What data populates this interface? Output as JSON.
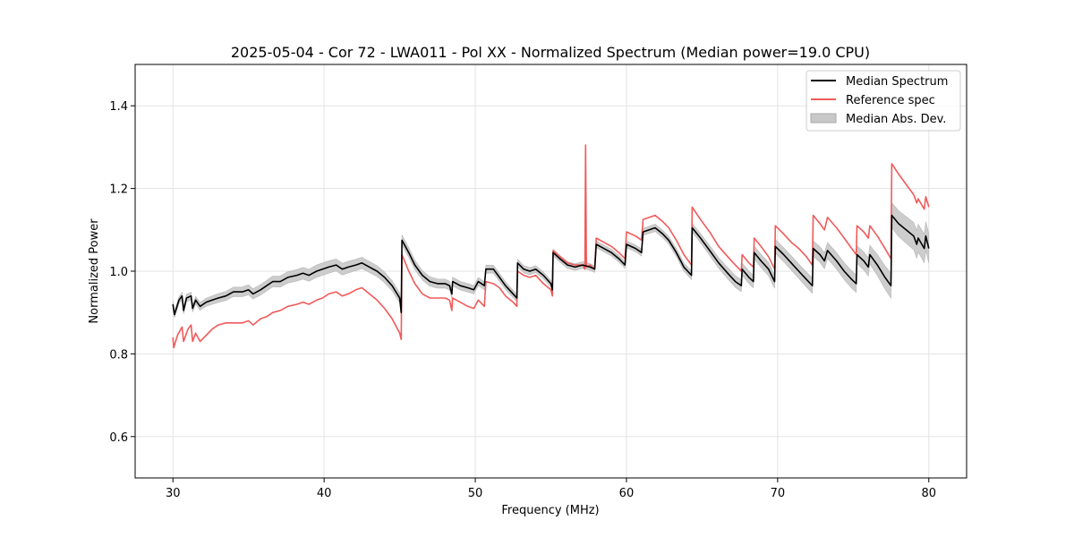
{
  "chart_data": {
    "type": "line",
    "title": "2025-05-04 - Cor 72 - LWA011 - Pol XX - Normalized Spectrum (Median power=19.0 CPU)",
    "xlabel": "Frequency (MHz)",
    "ylabel": "Normalized Power",
    "xlim": [
      27.5,
      82.5
    ],
    "ylim": [
      0.5,
      1.5
    ],
    "xticks": [
      30,
      40,
      50,
      60,
      70,
      80
    ],
    "yticks": [
      0.6,
      0.8,
      1.0,
      1.2,
      1.4
    ],
    "xtick_labels": [
      "30",
      "40",
      "50",
      "60",
      "70",
      "80"
    ],
    "ytick_labels": [
      "0.6",
      "0.8",
      "1.0",
      "1.2",
      "1.4"
    ],
    "grid": true,
    "legend_position": "top-right",
    "legend": [
      {
        "label": "Median Spectrum",
        "kind": "line",
        "color": "#000000"
      },
      {
        "label": "Reference spec",
        "kind": "line",
        "color": "#f05a5a"
      },
      {
        "label": "Median Abs. Dev.",
        "kind": "patch",
        "color": "#c8c8c8"
      }
    ],
    "series": [
      {
        "name": "Median Spectrum",
        "color": "#000000",
        "points": [
          [
            30.0,
            0.92
          ],
          [
            30.1,
            0.895
          ],
          [
            30.4,
            0.93
          ],
          [
            30.6,
            0.94
          ],
          [
            30.7,
            0.905
          ],
          [
            30.9,
            0.935
          ],
          [
            31.2,
            0.94
          ],
          [
            31.3,
            0.91
          ],
          [
            31.5,
            0.93
          ],
          [
            31.8,
            0.915
          ],
          [
            32.2,
            0.925
          ],
          [
            32.6,
            0.93
          ],
          [
            33.0,
            0.935
          ],
          [
            33.5,
            0.94
          ],
          [
            34.0,
            0.95
          ],
          [
            34.6,
            0.95
          ],
          [
            35.0,
            0.955
          ],
          [
            35.3,
            0.945
          ],
          [
            35.8,
            0.955
          ],
          [
            36.2,
            0.965
          ],
          [
            36.6,
            0.975
          ],
          [
            37.1,
            0.975
          ],
          [
            37.6,
            0.985
          ],
          [
            38.2,
            0.99
          ],
          [
            38.6,
            0.995
          ],
          [
            39.0,
            0.99
          ],
          [
            39.5,
            1.0
          ],
          [
            39.9,
            1.005
          ],
          [
            40.3,
            1.01
          ],
          [
            40.8,
            1.015
          ],
          [
            41.2,
            1.005
          ],
          [
            41.6,
            1.01
          ],
          [
            42.1,
            1.015
          ],
          [
            42.5,
            1.02
          ],
          [
            43.0,
            1.01
          ],
          [
            43.5,
            1.0
          ],
          [
            44.0,
            0.985
          ],
          [
            44.5,
            0.965
          ],
          [
            45.0,
            0.935
          ],
          [
            45.1,
            0.9
          ],
          [
            45.15,
            1.075
          ],
          [
            45.6,
            1.045
          ],
          [
            46.0,
            1.015
          ],
          [
            46.5,
            0.99
          ],
          [
            47.0,
            0.975
          ],
          [
            47.5,
            0.97
          ],
          [
            48.0,
            0.97
          ],
          [
            48.3,
            0.965
          ],
          [
            48.45,
            0.945
          ],
          [
            48.5,
            0.975
          ],
          [
            49.0,
            0.965
          ],
          [
            49.5,
            0.96
          ],
          [
            49.9,
            0.955
          ],
          [
            50.2,
            0.975
          ],
          [
            50.6,
            0.965
          ],
          [
            50.7,
            1.005
          ],
          [
            51.2,
            1.005
          ],
          [
            51.6,
            0.985
          ],
          [
            52.0,
            0.965
          ],
          [
            52.5,
            0.945
          ],
          [
            52.75,
            0.935
          ],
          [
            52.8,
            1.02
          ],
          [
            53.2,
            1.005
          ],
          [
            53.6,
            1.0
          ],
          [
            54.0,
            1.005
          ],
          [
            54.5,
            0.99
          ],
          [
            55.0,
            0.97
          ],
          [
            55.1,
            0.955
          ],
          [
            55.15,
            1.045
          ],
          [
            55.6,
            1.03
          ],
          [
            56.1,
            1.015
          ],
          [
            56.6,
            1.01
          ],
          [
            57.1,
            1.015
          ],
          [
            57.6,
            1.01
          ],
          [
            57.9,
            1.005
          ],
          [
            58.0,
            1.065
          ],
          [
            58.5,
            1.055
          ],
          [
            59.0,
            1.045
          ],
          [
            59.5,
            1.03
          ],
          [
            59.9,
            1.015
          ],
          [
            60.0,
            1.065
          ],
          [
            60.6,
            1.055
          ],
          [
            61.0,
            1.045
          ],
          [
            61.1,
            1.095
          ],
          [
            61.9,
            1.105
          ],
          [
            62.4,
            1.09
          ],
          [
            62.8,
            1.075
          ],
          [
            63.3,
            1.045
          ],
          [
            63.8,
            1.01
          ],
          [
            64.3,
            0.99
          ],
          [
            64.35,
            1.105
          ],
          [
            64.9,
            1.08
          ],
          [
            65.5,
            1.05
          ],
          [
            66.1,
            1.02
          ],
          [
            66.7,
            0.995
          ],
          [
            67.2,
            0.975
          ],
          [
            67.6,
            0.965
          ],
          [
            67.65,
            1.005
          ],
          [
            68.1,
            0.985
          ],
          [
            68.4,
            0.975
          ],
          [
            68.45,
            1.045
          ],
          [
            68.9,
            1.025
          ],
          [
            69.4,
            1.005
          ],
          [
            69.8,
            0.975
          ],
          [
            69.85,
            1.06
          ],
          [
            70.4,
            1.04
          ],
          [
            70.9,
            1.02
          ],
          [
            71.4,
            1.0
          ],
          [
            71.9,
            0.98
          ],
          [
            72.3,
            0.965
          ],
          [
            72.35,
            1.055
          ],
          [
            72.8,
            1.04
          ],
          [
            73.1,
            1.025
          ],
          [
            73.3,
            1.05
          ],
          [
            73.9,
            1.025
          ],
          [
            74.4,
            1.0
          ],
          [
            74.9,
            0.98
          ],
          [
            75.2,
            0.97
          ],
          [
            75.25,
            1.04
          ],
          [
            75.7,
            1.025
          ],
          [
            76.0,
            1.01
          ],
          [
            76.1,
            1.04
          ],
          [
            76.6,
            1.015
          ],
          [
            77.1,
            0.985
          ],
          [
            77.5,
            0.965
          ],
          [
            77.55,
            1.135
          ],
          [
            78.0,
            1.115
          ],
          [
            78.5,
            1.1
          ],
          [
            79.0,
            1.085
          ],
          [
            79.2,
            1.065
          ],
          [
            79.3,
            1.08
          ],
          [
            79.7,
            1.055
          ],
          [
            79.8,
            1.085
          ],
          [
            80.0,
            1.055
          ]
        ]
      },
      {
        "name": "Reference spec",
        "color": "#f05a5a",
        "points": [
          [
            30.0,
            0.84
          ],
          [
            30.05,
            0.815
          ],
          [
            30.3,
            0.845
          ],
          [
            30.6,
            0.865
          ],
          [
            30.7,
            0.83
          ],
          [
            31.0,
            0.86
          ],
          [
            31.2,
            0.87
          ],
          [
            31.3,
            0.83
          ],
          [
            31.5,
            0.85
          ],
          [
            31.8,
            0.83
          ],
          [
            32.2,
            0.845
          ],
          [
            32.6,
            0.86
          ],
          [
            33.0,
            0.87
          ],
          [
            33.5,
            0.875
          ],
          [
            34.0,
            0.875
          ],
          [
            34.6,
            0.875
          ],
          [
            35.0,
            0.88
          ],
          [
            35.3,
            0.87
          ],
          [
            35.8,
            0.885
          ],
          [
            36.2,
            0.89
          ],
          [
            36.6,
            0.9
          ],
          [
            37.1,
            0.905
          ],
          [
            37.6,
            0.915
          ],
          [
            38.2,
            0.92
          ],
          [
            38.6,
            0.925
          ],
          [
            39.0,
            0.92
          ],
          [
            39.5,
            0.93
          ],
          [
            39.9,
            0.935
          ],
          [
            40.3,
            0.945
          ],
          [
            40.8,
            0.95
          ],
          [
            41.2,
            0.94
          ],
          [
            41.6,
            0.945
          ],
          [
            42.1,
            0.955
          ],
          [
            42.5,
            0.96
          ],
          [
            43.0,
            0.945
          ],
          [
            43.5,
            0.93
          ],
          [
            44.0,
            0.91
          ],
          [
            44.5,
            0.885
          ],
          [
            45.0,
            0.85
          ],
          [
            45.1,
            0.835
          ],
          [
            45.15,
            1.04
          ],
          [
            45.6,
            1.0
          ],
          [
            46.0,
            0.97
          ],
          [
            46.5,
            0.945
          ],
          [
            47.0,
            0.935
          ],
          [
            47.5,
            0.935
          ],
          [
            48.0,
            0.935
          ],
          [
            48.3,
            0.93
          ],
          [
            48.45,
            0.905
          ],
          [
            48.5,
            0.935
          ],
          [
            49.0,
            0.925
          ],
          [
            49.5,
            0.915
          ],
          [
            49.9,
            0.91
          ],
          [
            50.2,
            0.93
          ],
          [
            50.6,
            0.915
          ],
          [
            50.7,
            0.975
          ],
          [
            51.2,
            0.97
          ],
          [
            51.6,
            0.96
          ],
          [
            52.0,
            0.94
          ],
          [
            52.5,
            0.925
          ],
          [
            52.75,
            0.915
          ],
          [
            52.8,
            1.0
          ],
          [
            53.2,
            0.99
          ],
          [
            53.6,
            0.985
          ],
          [
            54.0,
            0.99
          ],
          [
            54.5,
            0.97
          ],
          [
            55.0,
            0.955
          ],
          [
            55.1,
            0.94
          ],
          [
            55.15,
            1.05
          ],
          [
            55.6,
            1.035
          ],
          [
            56.1,
            1.02
          ],
          [
            56.6,
            1.015
          ],
          [
            57.1,
            1.015
          ],
          [
            57.25,
            1.005
          ],
          [
            57.3,
            1.305
          ],
          [
            57.35,
            1.01
          ],
          [
            57.6,
            1.015
          ],
          [
            57.9,
            1.005
          ],
          [
            58.0,
            1.08
          ],
          [
            58.5,
            1.07
          ],
          [
            59.0,
            1.06
          ],
          [
            59.5,
            1.045
          ],
          [
            59.9,
            1.03
          ],
          [
            60.0,
            1.095
          ],
          [
            60.6,
            1.085
          ],
          [
            61.0,
            1.075
          ],
          [
            61.1,
            1.125
          ],
          [
            61.9,
            1.135
          ],
          [
            62.4,
            1.12
          ],
          [
            62.8,
            1.105
          ],
          [
            63.3,
            1.075
          ],
          [
            63.8,
            1.04
          ],
          [
            64.3,
            1.015
          ],
          [
            64.35,
            1.155
          ],
          [
            64.9,
            1.125
          ],
          [
            65.5,
            1.095
          ],
          [
            66.1,
            1.06
          ],
          [
            66.7,
            1.035
          ],
          [
            67.2,
            1.015
          ],
          [
            67.6,
            1.0
          ],
          [
            67.65,
            1.04
          ],
          [
            68.1,
            1.02
          ],
          [
            68.4,
            1.01
          ],
          [
            68.45,
            1.08
          ],
          [
            68.9,
            1.06
          ],
          [
            69.4,
            1.035
          ],
          [
            69.8,
            1.005
          ],
          [
            69.85,
            1.11
          ],
          [
            70.4,
            1.09
          ],
          [
            70.9,
            1.07
          ],
          [
            71.4,
            1.055
          ],
          [
            71.9,
            1.035
          ],
          [
            72.3,
            1.015
          ],
          [
            72.35,
            1.135
          ],
          [
            72.8,
            1.115
          ],
          [
            73.1,
            1.1
          ],
          [
            73.3,
            1.13
          ],
          [
            73.9,
            1.105
          ],
          [
            74.4,
            1.08
          ],
          [
            74.9,
            1.055
          ],
          [
            75.2,
            1.04
          ],
          [
            75.25,
            1.11
          ],
          [
            75.7,
            1.095
          ],
          [
            76.0,
            1.08
          ],
          [
            76.1,
            1.11
          ],
          [
            76.6,
            1.085
          ],
          [
            77.1,
            1.055
          ],
          [
            77.5,
            1.03
          ],
          [
            77.55,
            1.26
          ],
          [
            78.0,
            1.235
          ],
          [
            78.5,
            1.21
          ],
          [
            79.0,
            1.185
          ],
          [
            79.2,
            1.165
          ],
          [
            79.3,
            1.175
          ],
          [
            79.7,
            1.15
          ],
          [
            79.8,
            1.18
          ],
          [
            80.0,
            1.155
          ]
        ]
      }
    ],
    "band": {
      "name": "Median Abs. Dev.",
      "color": "#c8c8c8",
      "halfwidth": [
        [
          30.0,
          0.008
        ],
        [
          35.0,
          0.012
        ],
        [
          40.0,
          0.015
        ],
        [
          45.0,
          0.012
        ],
        [
          50.0,
          0.01
        ],
        [
          55.0,
          0.008
        ],
        [
          60.0,
          0.008
        ],
        [
          64.0,
          0.01
        ],
        [
          68.0,
          0.015
        ],
        [
          72.0,
          0.018
        ],
        [
          76.0,
          0.022
        ],
        [
          77.5,
          0.03
        ],
        [
          80.0,
          0.035
        ]
      ]
    }
  }
}
